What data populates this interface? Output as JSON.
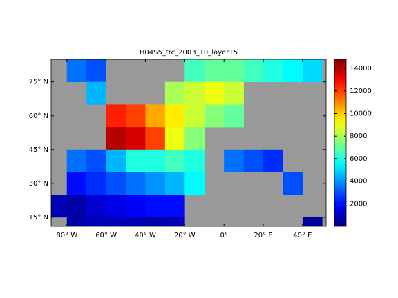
{
  "chart_data": {
    "type": "heatmap",
    "title": "H04S5_trc_2003_10_layer15",
    "x": [
      -85,
      -75,
      -65,
      -55,
      -45,
      -35,
      -25,
      -15,
      -5,
      5,
      15,
      25,
      35,
      45
    ],
    "y": [
      80,
      70,
      60,
      50,
      40,
      30,
      20,
      10
    ],
    "values": [
      [
        null,
        3500,
        3000,
        null,
        null,
        null,
        null,
        6500,
        7000,
        7000,
        6500,
        6000,
        5500,
        5000
      ],
      [
        null,
        null,
        4500,
        null,
        null,
        null,
        8000,
        8500,
        9000,
        8500,
        null,
        null,
        null,
        null
      ],
      [
        null,
        null,
        null,
        12500,
        12000,
        10500,
        9500,
        8500,
        7500,
        7000,
        null,
        null,
        null,
        null
      ],
      [
        null,
        null,
        null,
        14000,
        13500,
        12000,
        9000,
        7500,
        null,
        null,
        null,
        null,
        null,
        null
      ],
      [
        null,
        3500,
        3000,
        4500,
        6000,
        6000,
        6500,
        6000,
        null,
        3500,
        3000,
        2500,
        null,
        null
      ],
      [
        null,
        2000,
        2500,
        3000,
        3500,
        4000,
        4500,
        5500,
        null,
        null,
        null,
        null,
        3000,
        null
      ],
      [
        800,
        600,
        1200,
        1500,
        1800,
        2000,
        2000,
        null,
        null,
        null,
        null,
        null,
        null,
        null
      ],
      [
        null,
        600,
        800,
        800,
        700,
        600,
        800,
        null,
        null,
        null,
        null,
        null,
        null,
        400
      ]
    ],
    "xlim": [
      -88,
      52
    ],
    "ylim": [
      11,
      85
    ],
    "xticks": [
      {
        "value": -80,
        "label": "80° W"
      },
      {
        "value": -60,
        "label": "60° W"
      },
      {
        "value": -40,
        "label": "40° W"
      },
      {
        "value": -20,
        "label": "20° W"
      },
      {
        "value": 0,
        "label": "0°"
      },
      {
        "value": 20,
        "label": "20° E"
      },
      {
        "value": 40,
        "label": "40° E"
      }
    ],
    "yticks": [
      {
        "value": 15,
        "label": "15° N"
      },
      {
        "value": 30,
        "label": "30° N"
      },
      {
        "value": 45,
        "label": "45° N"
      },
      {
        "value": 60,
        "label": "60° N"
      },
      {
        "value": 75,
        "label": "75° N"
      }
    ],
    "colormap": "jet",
    "clim": [
      0,
      14800
    ],
    "cticks": [
      2000,
      4000,
      6000,
      8000,
      10000,
      12000,
      14000
    ]
  }
}
